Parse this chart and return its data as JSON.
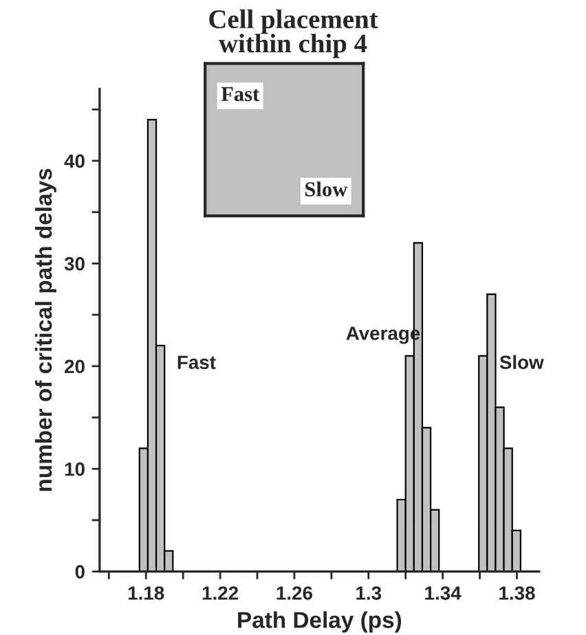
{
  "chart_data": {
    "type": "histogram",
    "title": "Cell placement\nwithin chip 4",
    "xlabel": "Path Delay (ps)",
    "ylabel": "number of critical path delays",
    "bins": [
      1.1765,
      1.181,
      1.1855,
      1.19,
      1.1945,
      1.3155,
      1.32,
      1.3245,
      1.329,
      1.3335,
      1.338,
      1.3595,
      1.364,
      1.3685,
      1.373,
      1.3775,
      1.382
    ],
    "values": [
      12,
      44,
      22,
      2,
      0,
      7,
      21,
      32,
      14,
      6,
      0,
      21,
      27,
      16,
      12,
      4
    ],
    "color": "#c0c0c0",
    "xlim": [
      1.155,
      1.392
    ],
    "ylim": [
      0,
      47
    ],
    "xticks": [
      {
        "value": 1.16,
        "label": null
      },
      1.18,
      {
        "value": 1.2,
        "label": null
      },
      1.22,
      {
        "value": 1.24,
        "label": null
      },
      1.26,
      {
        "value": 1.28,
        "label": null
      },
      1.3,
      {
        "value": 1.32,
        "label": null
      },
      1.34,
      {
        "value": 1.36,
        "label": null
      },
      1.38
    ],
    "yticks": [
      0,
      {
        "value": 5,
        "label": null
      },
      10,
      {
        "value": 15,
        "label": null
      },
      20,
      {
        "value": 25,
        "label": null
      },
      30,
      {
        "value": 35,
        "label": null
      },
      40,
      {
        "value": 45,
        "label": null
      }
    ],
    "annotations": [
      "Fast",
      "Average",
      "Slow",
      "Fast",
      "Slow"
    ],
    "grid": false,
    "legend": false
  }
}
